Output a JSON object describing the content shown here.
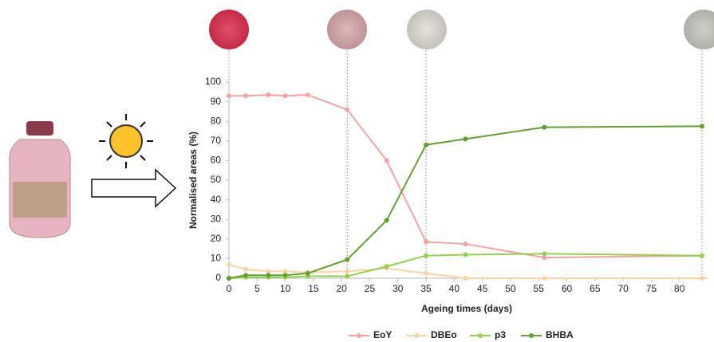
{
  "chart_data": {
    "type": "line",
    "x_label": "Ageing times (days)",
    "y_label": "Normalised areas (%)",
    "x": [
      0,
      3,
      7,
      10,
      14,
      21,
      28,
      35,
      42,
      56,
      84
    ],
    "series": [
      {
        "name": "EoY",
        "color": "#f4a3a3",
        "values": [
          93,
          93,
          93.5,
          93,
          93.5,
          86,
          60,
          18.5,
          17.5,
          10.5,
          11.5
        ]
      },
      {
        "name": "DBEo",
        "color": "#fbd3a6",
        "values": [
          7,
          4.5,
          3.5,
          3.5,
          3,
          3.5,
          5,
          2.5,
          0,
          0,
          0
        ]
      },
      {
        "name": "p3",
        "color": "#92d050",
        "values": [
          0,
          0.5,
          0.5,
          0.5,
          1,
          1,
          6,
          11.5,
          12,
          12.5,
          11.5
        ]
      },
      {
        "name": "BHBA",
        "color": "#62a030",
        "values": [
          0,
          1.5,
          1.5,
          1.5,
          2.5,
          9.5,
          29.5,
          68,
          71,
          77,
          77.5
        ]
      }
    ],
    "xlim": [
      0,
      85
    ],
    "ylim": [
      0,
      100
    ],
    "xticks": [
      0,
      5,
      10,
      15,
      20,
      25,
      30,
      35,
      40,
      45,
      50,
      55,
      60,
      65,
      70,
      75,
      80
    ],
    "yticks": [
      0,
      10,
      20,
      30,
      40,
      50,
      60,
      70,
      80,
      90,
      100
    ],
    "legend": "bottom"
  }
}
